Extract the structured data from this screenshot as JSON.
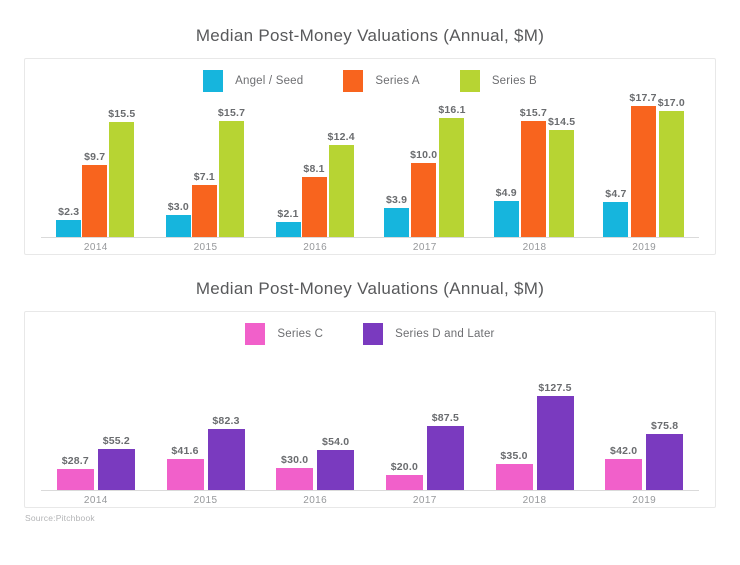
{
  "page": {
    "source_note": "Source:Pitchbook"
  },
  "charts": [
    {
      "title": "Median Post-Money Valuations (Annual, $M)",
      "chart_data": {
        "type": "bar",
        "categories": [
          "2014",
          "2015",
          "2016",
          "2017",
          "2018",
          "2019"
        ],
        "series": [
          {
            "name": "Angel / Seed",
            "color": "#16b5dd",
            "values": [
              2.3,
              3.0,
              2.1,
              3.9,
              4.9,
              4.7
            ],
            "labels": [
              "$2.3",
              "$3.0",
              "$2.1",
              "$3.9",
              "$4.9",
              "$4.7"
            ]
          },
          {
            "name": "Series A",
            "color": "#f8641e",
            "values": [
              9.7,
              7.1,
              8.1,
              10.0,
              15.7,
              17.7
            ],
            "labels": [
              "$9.7",
              "$7.1",
              "$8.1",
              "$10.0",
              "$15.7",
              "$17.7"
            ]
          },
          {
            "name": "Series B",
            "color": "#b7d433",
            "values": [
              15.5,
              15.7,
              12.4,
              16.1,
              14.5,
              17.0
            ],
            "labels": [
              "$15.5",
              "$15.7",
              "$12.4",
              "$16.1",
              "$14.5",
              "$17.0"
            ]
          }
        ],
        "title": "Median Post-Money Valuations (Annual, $M)",
        "xlabel": "",
        "ylabel": "",
        "ylim": [
          0,
          19.6
        ],
        "grid": false,
        "legend_position": "top",
        "value_labels_shown": true
      }
    },
    {
      "title": "Median Post-Money Valuations (Annual, $M)",
      "chart_data": {
        "type": "bar",
        "categories": [
          "2014",
          "2015",
          "2016",
          "2017",
          "2018",
          "2019"
        ],
        "series": [
          {
            "name": "Series C",
            "color": "#f160ca",
            "values": [
              28.7,
              41.6,
              30.0,
              20.0,
              35.0,
              42.0
            ],
            "labels": [
              "$28.7",
              "$41.6",
              "$30.0",
              "$20.0",
              "$35.0",
              "$42.0"
            ]
          },
          {
            "name": "Series D and Later",
            "color": "#7a3abf",
            "values": [
              55.2,
              82.3,
              54.0,
              87.5,
              127.5,
              75.8
            ],
            "labels": [
              "$55.2",
              "$82.3",
              "$54.0",
              "$87.5",
              "$127.5",
              "$75.8"
            ]
          }
        ],
        "title": "Median Post-Money Valuations (Annual, $M)",
        "xlabel": "",
        "ylabel": "",
        "ylim": [
          0,
          197
        ],
        "grid": false,
        "legend_position": "top",
        "value_labels_shown": true
      }
    }
  ]
}
